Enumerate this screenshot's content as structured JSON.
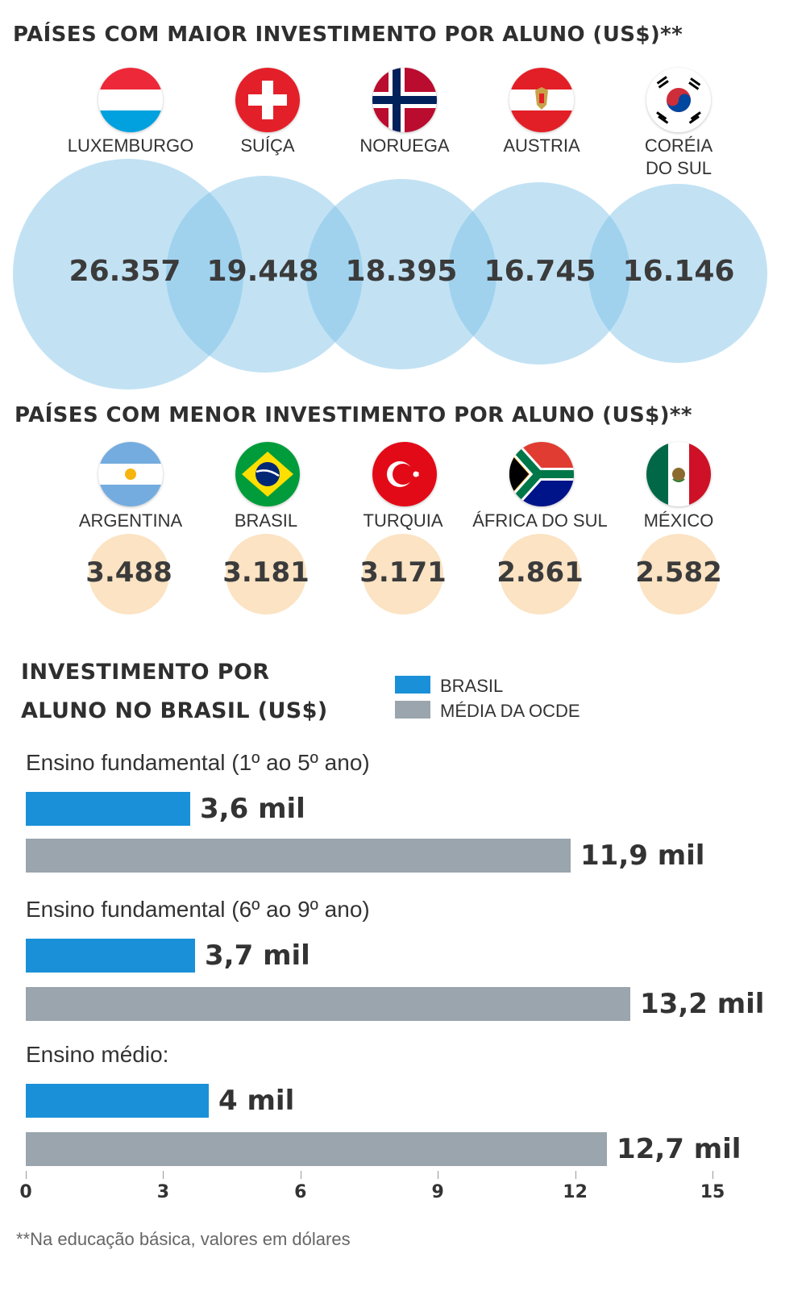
{
  "top": {
    "title": "PAÍSES COM MAIOR INVESTIMENTO POR ALUNO (US$)**",
    "countries": [
      {
        "name": "LUXEMBURGO",
        "value": "26.357",
        "flag": "luxembourg-flag"
      },
      {
        "name": "SUÍÇA",
        "value": "19.448",
        "flag": "switzerland-flag"
      },
      {
        "name": "NORUEGA",
        "value": "18.395",
        "flag": "norway-flag"
      },
      {
        "name": "AUSTRIA",
        "value": "16.745",
        "flag": "austria-flag"
      },
      {
        "name": "CORÉIA\nDO SUL",
        "value": "16.146",
        "flag": "south-korea-flag"
      }
    ]
  },
  "bottom": {
    "title": "PAÍSES COM MENOR INVESTIMENTO POR ALUNO (US$)**",
    "countries": [
      {
        "name": "ARGENTINA",
        "value": "3.488",
        "flag": "argentina-flag"
      },
      {
        "name": "BRASIL",
        "value": "3.181",
        "flag": "brazil-flag"
      },
      {
        "name": "TURQUIA",
        "value": "3.171",
        "flag": "turkey-flag"
      },
      {
        "name": "ÁFRICA DO SUL",
        "value": "2.861",
        "flag": "south-africa-flag"
      },
      {
        "name": "MÉXICO",
        "value": "2.582",
        "flag": "mexico-flag"
      }
    ]
  },
  "chart_title": {
    "line1": "INVESTIMENTO POR",
    "line2": "ALUNO NO BRASIL (US$)"
  },
  "legend": [
    {
      "label": "BRASIL",
      "color": "#1a90d8"
    },
    {
      "label": "MÉDIA DA OCDE",
      "color": "#9aa5ad"
    }
  ],
  "chart_data": {
    "type": "bar",
    "orientation": "horizontal",
    "title": "INVESTIMENTO POR ALUNO NO BRASIL (US$)",
    "categories": [
      "Ensino fundamental (1º ao 5º ano)",
      "Ensino fundamental (6º ao 9º ano)",
      "Ensino médio:"
    ],
    "series": [
      {
        "name": "BRASIL",
        "values": [
          3.6,
          3.7,
          4.0
        ],
        "labels": [
          "3,6 mil",
          "3,7 mil",
          "4 mil"
        ],
        "color": "#1a90d8"
      },
      {
        "name": "MÉDIA DA OCDE",
        "values": [
          11.9,
          13.2,
          12.7
        ],
        "labels": [
          "11,9 mil",
          "13,2 mil",
          "12,7 mil"
        ],
        "color": "#9aa5ad"
      }
    ],
    "xlim": [
      0,
      15
    ],
    "xticks": [
      "0",
      "3",
      "6",
      "9",
      "12",
      "15"
    ],
    "grid": false,
    "legend": "top-right"
  },
  "footnote": "**Na educação básica, valores em dólares"
}
